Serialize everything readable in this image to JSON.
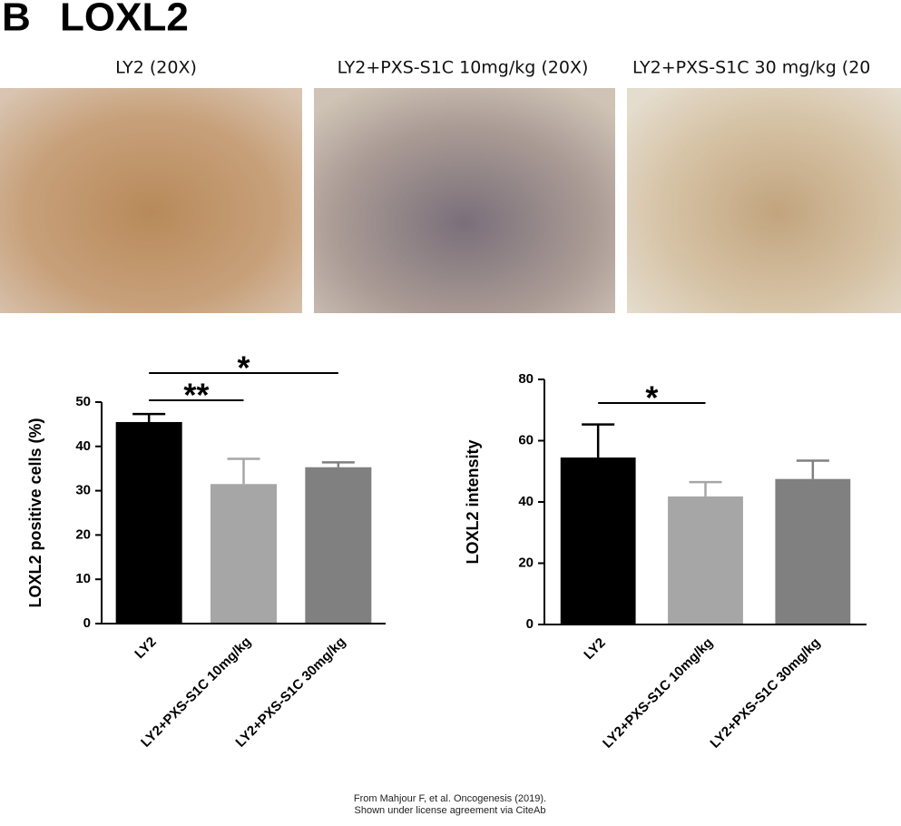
{
  "panel_label": "B",
  "panel_title": "LOXL2",
  "image_captions": [
    "LY2 (20X)",
    "LY2+PXS-S1C 10mg/kg (20X)",
    "LY2+PXS-S1C 30 mg/kg (20"
  ],
  "chart_data": [
    {
      "type": "bar",
      "y_label": "LOXL2 positive cells (%)",
      "categories": [
        "LY2",
        "LY2+PXS-S1C 10mg/kg",
        "LY2+PXS-S1C 30mg/kg"
      ],
      "values": [
        45.5,
        31.5,
        35.3
      ],
      "errors": [
        1.8,
        5.7,
        1.1
      ],
      "colors": [
        "#000000",
        "#a6a6a6",
        "#808080"
      ],
      "ylim": [
        0,
        50
      ],
      "yticks": [
        0,
        10,
        20,
        30,
        40,
        50
      ],
      "annotations": [
        "*",
        "**"
      ]
    },
    {
      "type": "bar",
      "y_label": "LOXL2 intensity",
      "categories": [
        "LY2",
        "LY2+PXS-S1C 10mg/kg",
        "LY2+PXS-S1C 30mg/kg"
      ],
      "values": [
        54.5,
        41.8,
        47.5
      ],
      "errors": [
        10.8,
        4.7,
        6.0
      ],
      "colors": [
        "#000000",
        "#a6a6a6",
        "#808080"
      ],
      "ylim": [
        0,
        80
      ],
      "yticks": [
        0,
        20,
        40,
        60,
        80
      ],
      "annotations": [
        "*"
      ]
    }
  ],
  "credit": [
    "From Mahjour F, et al. Oncogenesis (2019).",
    "Shown under license agreement via CiteAb"
  ]
}
